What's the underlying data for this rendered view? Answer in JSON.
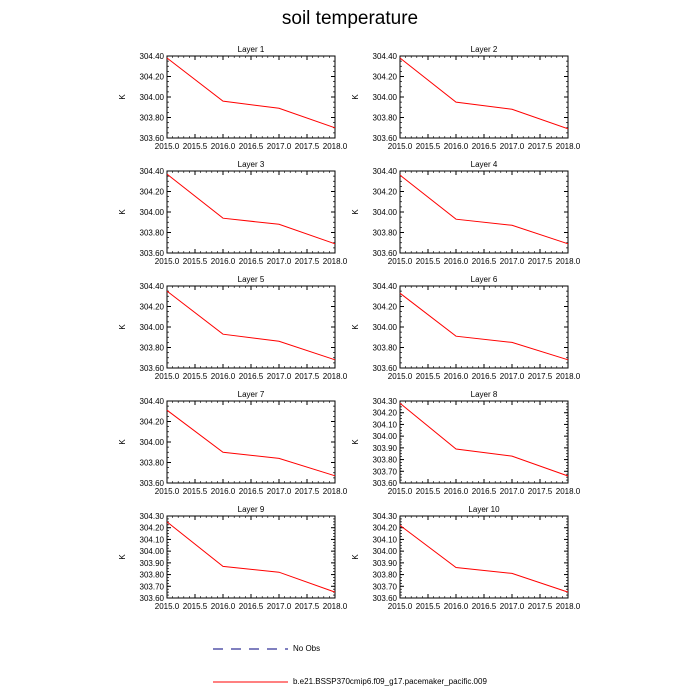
{
  "figure_title": "soil temperature",
  "colors": {
    "model_line": "#ff0000",
    "no_obs_line": "#00007f",
    "axis": "#000000"
  },
  "legend": {
    "no_obs_label": "No Obs",
    "model_label": "b.e21.BSSP370cmip6.f09_g17.pacemaker_pacific.009"
  },
  "chart_data": [
    {
      "type": "line",
      "title": "Layer 1",
      "ylabel": "K",
      "x": [
        2015.0,
        2016.0,
        2017.0,
        2018.0
      ],
      "y": [
        304.38,
        303.96,
        303.89,
        303.7
      ],
      "xlim": [
        2015.0,
        2018.0
      ],
      "ylim": [
        303.6,
        304.4
      ],
      "xticks": [
        "2015.0",
        "2015.5",
        "2016.0",
        "2016.5",
        "2017.0",
        "2017.5",
        "2018.0"
      ],
      "yticks": [
        "303.60",
        "303.80",
        "304.00",
        "304.20",
        "304.40"
      ],
      "yticks_values": [
        303.6,
        303.8,
        304.0,
        304.2,
        304.4
      ]
    },
    {
      "type": "line",
      "title": "Layer 2",
      "ylabel": "K",
      "x": [
        2015.0,
        2016.0,
        2017.0,
        2018.0
      ],
      "y": [
        304.38,
        303.95,
        303.88,
        303.69
      ],
      "xlim": [
        2015.0,
        2018.0
      ],
      "ylim": [
        303.6,
        304.4
      ],
      "xticks": [
        "2015.0",
        "2015.5",
        "2016.0",
        "2016.5",
        "2017.0",
        "2017.5",
        "2018.0"
      ],
      "yticks": [
        "303.60",
        "303.80",
        "304.00",
        "304.20",
        "304.40"
      ],
      "yticks_values": [
        303.6,
        303.8,
        304.0,
        304.2,
        304.4
      ]
    },
    {
      "type": "line",
      "title": "Layer 3",
      "ylabel": "K",
      "x": [
        2015.0,
        2016.0,
        2017.0,
        2018.0
      ],
      "y": [
        304.37,
        303.94,
        303.88,
        303.69
      ],
      "xlim": [
        2015.0,
        2018.0
      ],
      "ylim": [
        303.6,
        304.4
      ],
      "xticks": [
        "2015.0",
        "2015.5",
        "2016.0",
        "2016.5",
        "2017.0",
        "2017.5",
        "2018.0"
      ],
      "yticks": [
        "303.60",
        "303.80",
        "304.00",
        "304.20",
        "304.40"
      ],
      "yticks_values": [
        303.6,
        303.8,
        304.0,
        304.2,
        304.4
      ]
    },
    {
      "type": "line",
      "title": "Layer 4",
      "ylabel": "K",
      "x": [
        2015.0,
        2016.0,
        2017.0,
        2018.0
      ],
      "y": [
        304.36,
        303.93,
        303.87,
        303.69
      ],
      "xlim": [
        2015.0,
        2018.0
      ],
      "ylim": [
        303.6,
        304.4
      ],
      "xticks": [
        "2015.0",
        "2015.5",
        "2016.0",
        "2016.5",
        "2017.0",
        "2017.5",
        "2018.0"
      ],
      "yticks": [
        "303.60",
        "303.80",
        "304.00",
        "304.20",
        "304.40"
      ],
      "yticks_values": [
        303.6,
        303.8,
        304.0,
        304.2,
        304.4
      ]
    },
    {
      "type": "line",
      "title": "Layer 5",
      "ylabel": "K",
      "x": [
        2015.0,
        2016.0,
        2017.0,
        2018.0
      ],
      "y": [
        304.35,
        303.93,
        303.86,
        303.68
      ],
      "xlim": [
        2015.0,
        2018.0
      ],
      "ylim": [
        303.6,
        304.4
      ],
      "xticks": [
        "2015.0",
        "2015.5",
        "2016.0",
        "2016.5",
        "2017.0",
        "2017.5",
        "2018.0"
      ],
      "yticks": [
        "303.60",
        "303.80",
        "304.00",
        "304.20",
        "304.40"
      ],
      "yticks_values": [
        303.6,
        303.8,
        304.0,
        304.2,
        304.4
      ]
    },
    {
      "type": "line",
      "title": "Layer 6",
      "ylabel": "K",
      "x": [
        2015.0,
        2016.0,
        2017.0,
        2018.0
      ],
      "y": [
        304.33,
        303.91,
        303.85,
        303.68
      ],
      "xlim": [
        2015.0,
        2018.0
      ],
      "ylim": [
        303.6,
        304.4
      ],
      "xticks": [
        "2015.0",
        "2015.5",
        "2016.0",
        "2016.5",
        "2017.0",
        "2017.5",
        "2018.0"
      ],
      "yticks": [
        "303.60",
        "303.80",
        "304.00",
        "304.20",
        "304.40"
      ],
      "yticks_values": [
        303.6,
        303.8,
        304.0,
        304.2,
        304.4
      ]
    },
    {
      "type": "line",
      "title": "Layer 7",
      "ylabel": "K",
      "x": [
        2015.0,
        2016.0,
        2017.0,
        2018.0
      ],
      "y": [
        304.31,
        303.9,
        303.84,
        303.67
      ],
      "xlim": [
        2015.0,
        2018.0
      ],
      "ylim": [
        303.6,
        304.4
      ],
      "xticks": [
        "2015.0",
        "2015.5",
        "2016.0",
        "2016.5",
        "2017.0",
        "2017.5",
        "2018.0"
      ],
      "yticks": [
        "303.60",
        "303.80",
        "304.00",
        "304.20",
        "304.40"
      ],
      "yticks_values": [
        303.6,
        303.8,
        304.0,
        304.2,
        304.4
      ]
    },
    {
      "type": "line",
      "title": "Layer 8",
      "ylabel": "K",
      "x": [
        2015.0,
        2016.0,
        2017.0,
        2018.0
      ],
      "y": [
        304.28,
        303.89,
        303.83,
        303.66
      ],
      "xlim": [
        2015.0,
        2018.0
      ],
      "ylim": [
        303.6,
        304.3
      ],
      "xticks": [
        "2015.0",
        "2015.5",
        "2016.0",
        "2016.5",
        "2017.0",
        "2017.5",
        "2018.0"
      ],
      "yticks": [
        "303.60",
        "303.70",
        "303.80",
        "303.90",
        "304.00",
        "304.10",
        "304.20",
        "304.30"
      ],
      "yticks_values": [
        303.6,
        303.7,
        303.8,
        303.9,
        304.0,
        304.1,
        304.2,
        304.3
      ]
    },
    {
      "type": "line",
      "title": "Layer 9",
      "ylabel": "K",
      "x": [
        2015.0,
        2016.0,
        2017.0,
        2018.0
      ],
      "y": [
        304.25,
        303.87,
        303.82,
        303.65
      ],
      "xlim": [
        2015.0,
        2018.0
      ],
      "ylim": [
        303.6,
        304.3
      ],
      "xticks": [
        "2015.0",
        "2015.5",
        "2016.0",
        "2016.5",
        "2017.0",
        "2017.5",
        "2018.0"
      ],
      "yticks": [
        "303.60",
        "303.70",
        "303.80",
        "303.90",
        "304.00",
        "304.10",
        "304.20",
        "304.30"
      ],
      "yticks_values": [
        303.6,
        303.7,
        303.8,
        303.9,
        304.0,
        304.1,
        304.2,
        304.3
      ]
    },
    {
      "type": "line",
      "title": "Layer 10",
      "ylabel": "K",
      "x": [
        2015.0,
        2016.0,
        2017.0,
        2018.0
      ],
      "y": [
        304.22,
        303.86,
        303.81,
        303.65
      ],
      "xlim": [
        2015.0,
        2018.0
      ],
      "ylim": [
        303.6,
        304.3
      ],
      "xticks": [
        "2015.0",
        "2015.5",
        "2016.0",
        "2016.5",
        "2017.0",
        "2017.5",
        "2018.0"
      ],
      "yticks": [
        "303.60",
        "303.70",
        "303.80",
        "303.90",
        "304.00",
        "304.10",
        "304.20",
        "304.30"
      ],
      "yticks_values": [
        303.6,
        303.7,
        303.8,
        303.9,
        304.0,
        304.1,
        304.2,
        304.3
      ]
    }
  ]
}
